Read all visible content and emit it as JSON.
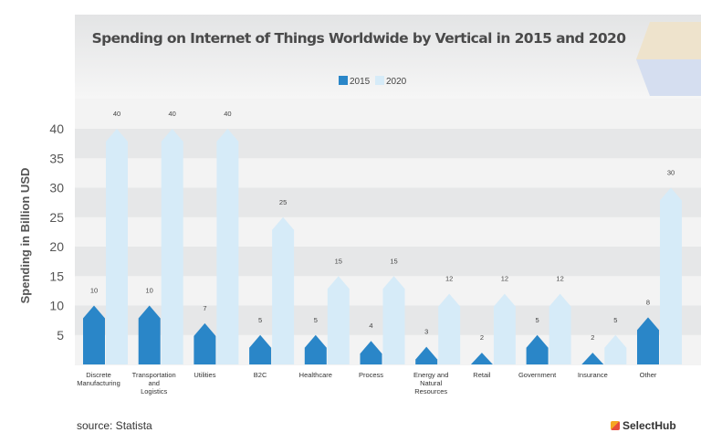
{
  "chart_data": {
    "type": "bar",
    "title": "Spending on Internet of Things Worldwide by Vertical in 2015 and 2020",
    "xlabel": "",
    "ylabel": "Spending in Billion USD",
    "ylim": [
      0,
      45
    ],
    "yticks": [
      5,
      10,
      15,
      20,
      25,
      30,
      35,
      40
    ],
    "grid": "alternating horizontal bands",
    "legend_position": "top-center",
    "categories": [
      [
        "Discrete",
        "Manufacturing"
      ],
      [
        "Transportation",
        "and",
        "Logistics"
      ],
      [
        "Utilities"
      ],
      [
        "B2C"
      ],
      [
        "Healthcare"
      ],
      [
        "Process"
      ],
      [
        "Energy and",
        "Natural",
        "Resources"
      ],
      [
        "Retail"
      ],
      [
        "Government"
      ],
      [
        "Insurance"
      ],
      [
        "Other"
      ]
    ],
    "series": [
      {
        "name": "2015",
        "color": "#2a86c8",
        "values": [
          10,
          10,
          7,
          5,
          5,
          4,
          3,
          2,
          5,
          2,
          8
        ]
      },
      {
        "name": "2020",
        "color": "#d6ebf8",
        "values": [
          40,
          40,
          40,
          25,
          15,
          15,
          12,
          12,
          12,
          5,
          30
        ]
      }
    ]
  },
  "footer": {
    "source": "source: Statista",
    "brand": "SelectHub"
  }
}
